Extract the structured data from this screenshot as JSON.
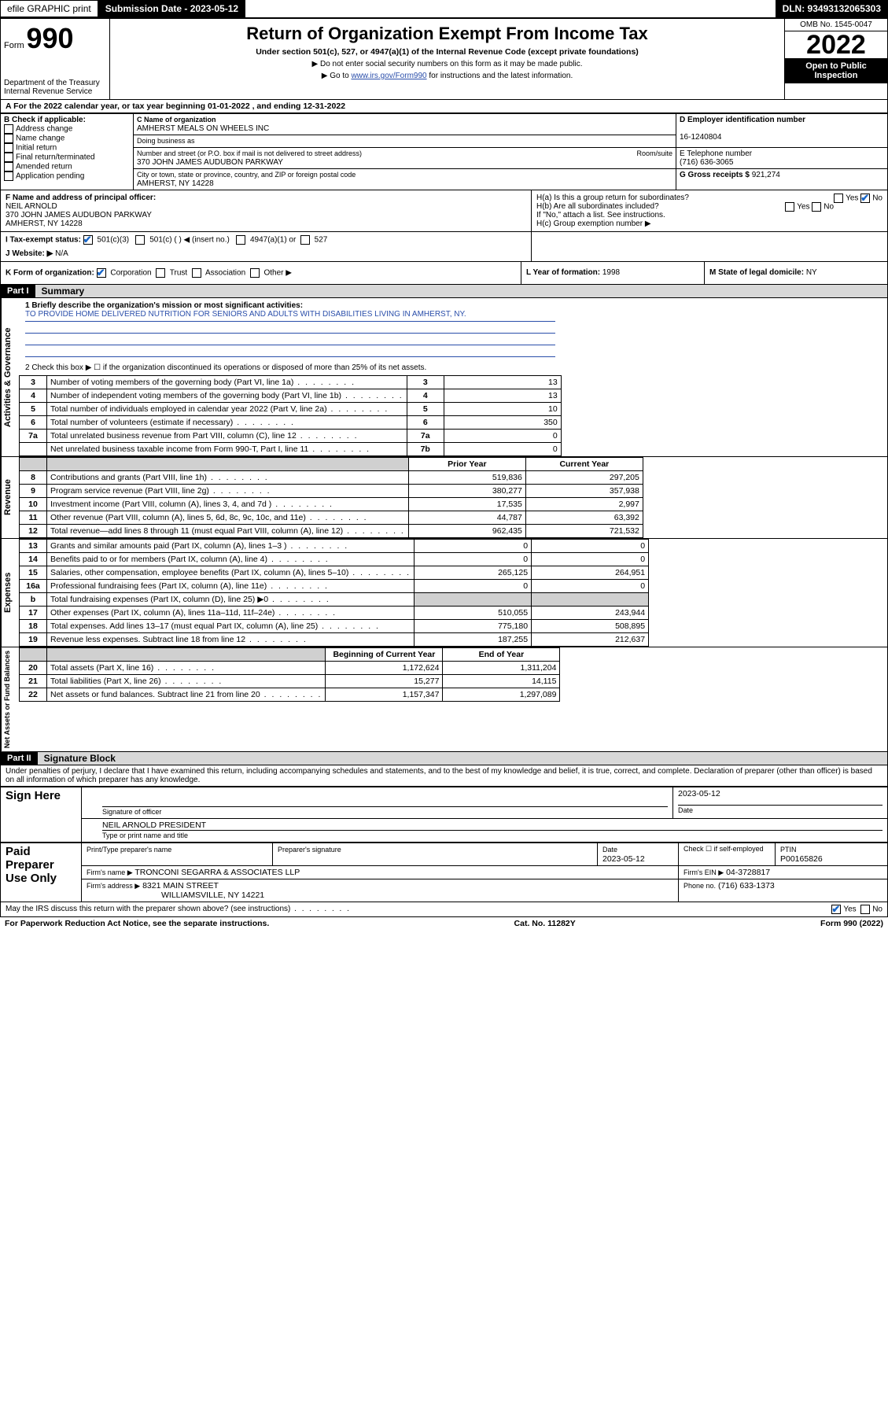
{
  "topbar": {
    "efile": "efile GRAPHIC print",
    "submission_label": "Submission Date - 2023-05-12",
    "dln_label": "DLN: 93493132065303"
  },
  "header": {
    "form_prefix": "Form",
    "form_number": "990",
    "dept": "Department of the Treasury",
    "irs": "Internal Revenue Service",
    "title": "Return of Organization Exempt From Income Tax",
    "sub1": "Under section 501(c), 527, or 4947(a)(1) of the Internal Revenue Code (except private foundations)",
    "sub2": "▶ Do not enter social security numbers on this form as it may be made public.",
    "sub3_prefix": "▶ Go to ",
    "sub3_link": "www.irs.gov/Form990",
    "sub3_suffix": " for instructions and the latest information.",
    "omb": "OMB No. 1545-0047",
    "year": "2022",
    "open": "Open to Public Inspection"
  },
  "rowA": "A For the 2022 calendar year, or tax year beginning 01-01-2022   , and ending 12-31-2022",
  "blockB": {
    "label": "B Check if applicable:",
    "opts": [
      "Address change",
      "Name change",
      "Initial return",
      "Final return/terminated",
      "Amended return",
      "Application pending"
    ]
  },
  "blockC": {
    "name_label": "C Name of organization",
    "name": "AMHERST MEALS ON WHEELS INC",
    "dba_label": "Doing business as",
    "addr_label": "Number and street (or P.O. box if mail is not delivered to street address)",
    "room_label": "Room/suite",
    "addr": "370 JOHN JAMES AUDUBON PARKWAY",
    "city_label": "City or town, state or province, country, and ZIP or foreign postal code",
    "city": "AMHERST, NY  14228"
  },
  "blockD": {
    "label": "D Employer identification number",
    "value": "16-1240804"
  },
  "blockE": {
    "label": "E Telephone number",
    "value": "(716) 636-3065"
  },
  "blockG": {
    "label": "G Gross receipts $",
    "value": "921,274"
  },
  "blockF": {
    "label": "F  Name and address of principal officer:",
    "name": "NEIL ARNOLD",
    "addr1": "370 JOHN JAMES AUDUBON PARKWAY",
    "addr2": "AMHERST, NY  14228"
  },
  "blockH": {
    "a": "H(a)  Is this a group return for subordinates?",
    "b": "H(b)  Are all subordinates included?",
    "note": "If \"No,\" attach a list. See instructions.",
    "c": "H(c)  Group exemption number ▶",
    "yes": "Yes",
    "no": "No"
  },
  "rowI": {
    "label": "I   Tax-exempt status:",
    "opt1": "501(c)(3)",
    "opt2": "501(c) (   ) ◀ (insert no.)",
    "opt3": "4947(a)(1) or",
    "opt4": "527"
  },
  "rowJ": {
    "label": "J   Website: ▶",
    "value": "N/A"
  },
  "rowK": {
    "label": "K Form of organization:",
    "opts": [
      "Corporation",
      "Trust",
      "Association",
      "Other ▶"
    ]
  },
  "rowL": {
    "label": "L Year of formation:",
    "value": "1998"
  },
  "rowM": {
    "label": "M State of legal domicile:",
    "value": "NY"
  },
  "part1": {
    "header": "Part I",
    "title": "Summary",
    "line1_label": "1  Briefly describe the organization's mission or most significant activities:",
    "mission": "TO PROVIDE HOME DELIVERED NUTRITION FOR SENIORS AND ADULTS WITH DISABILITIES LIVING IN AMHERST, NY.",
    "line2": "2   Check this box ▶ ☐  if the organization discontinued its operations or disposed of more than 25% of its net assets."
  },
  "governance": {
    "vert": "Activities & Governance",
    "rows": [
      {
        "n": "3",
        "label": "Number of voting members of the governing body (Part VI, line 1a)",
        "box": "3",
        "val": "13"
      },
      {
        "n": "4",
        "label": "Number of independent voting members of the governing body (Part VI, line 1b)",
        "box": "4",
        "val": "13"
      },
      {
        "n": "5",
        "label": "Total number of individuals employed in calendar year 2022 (Part V, line 2a)",
        "box": "5",
        "val": "10"
      },
      {
        "n": "6",
        "label": "Total number of volunteers (estimate if necessary)",
        "box": "6",
        "val": "350"
      },
      {
        "n": "7a",
        "label": "Total unrelated business revenue from Part VIII, column (C), line 12",
        "box": "7a",
        "val": "0"
      },
      {
        "n": "",
        "label": "Net unrelated business taxable income from Form 990-T, Part I, line 11",
        "box": "7b",
        "val": "0"
      }
    ]
  },
  "revenue": {
    "vert": "Revenue",
    "header_prior": "Prior Year",
    "header_current": "Current Year",
    "rows": [
      {
        "n": "8",
        "label": "Contributions and grants (Part VIII, line 1h)",
        "prior": "519,836",
        "cur": "297,205"
      },
      {
        "n": "9",
        "label": "Program service revenue (Part VIII, line 2g)",
        "prior": "380,277",
        "cur": "357,938"
      },
      {
        "n": "10",
        "label": "Investment income (Part VIII, column (A), lines 3, 4, and 7d )",
        "prior": "17,535",
        "cur": "2,997"
      },
      {
        "n": "11",
        "label": "Other revenue (Part VIII, column (A), lines 5, 6d, 8c, 9c, 10c, and 11e)",
        "prior": "44,787",
        "cur": "63,392"
      },
      {
        "n": "12",
        "label": "Total revenue—add lines 8 through 11 (must equal Part VIII, column (A), line 12)",
        "prior": "962,435",
        "cur": "721,532"
      }
    ]
  },
  "expenses": {
    "vert": "Expenses",
    "rows": [
      {
        "n": "13",
        "label": "Grants and similar amounts paid (Part IX, column (A), lines 1–3 )",
        "prior": "0",
        "cur": "0"
      },
      {
        "n": "14",
        "label": "Benefits paid to or for members (Part IX, column (A), line 4)",
        "prior": "0",
        "cur": "0"
      },
      {
        "n": "15",
        "label": "Salaries, other compensation, employee benefits (Part IX, column (A), lines 5–10)",
        "prior": "265,125",
        "cur": "264,951"
      },
      {
        "n": "16a",
        "label": "Professional fundraising fees (Part IX, column (A), line 11e)",
        "prior": "0",
        "cur": "0"
      },
      {
        "n": "b",
        "label": "Total fundraising expenses (Part IX, column (D), line 25) ▶0",
        "prior": "",
        "cur": "",
        "shaded": true
      },
      {
        "n": "17",
        "label": "Other expenses (Part IX, column (A), lines 11a–11d, 11f–24e)",
        "prior": "510,055",
        "cur": "243,944"
      },
      {
        "n": "18",
        "label": "Total expenses. Add lines 13–17 (must equal Part IX, column (A), line 25)",
        "prior": "775,180",
        "cur": "508,895"
      },
      {
        "n": "19",
        "label": "Revenue less expenses. Subtract line 18 from line 12",
        "prior": "187,255",
        "cur": "212,637"
      }
    ]
  },
  "netassets": {
    "vert": "Net Assets or Fund Balances",
    "header_begin": "Beginning of Current Year",
    "header_end": "End of Year",
    "rows": [
      {
        "n": "20",
        "label": "Total assets (Part X, line 16)",
        "prior": "1,172,624",
        "cur": "1,311,204"
      },
      {
        "n": "21",
        "label": "Total liabilities (Part X, line 26)",
        "prior": "15,277",
        "cur": "14,115"
      },
      {
        "n": "22",
        "label": "Net assets or fund balances. Subtract line 21 from line 20",
        "prior": "1,157,347",
        "cur": "1,297,089"
      }
    ]
  },
  "part2": {
    "header": "Part II",
    "title": "Signature Block",
    "declaration": "Under penalties of perjury, I declare that I have examined this return, including accompanying schedules and statements, and to the best of my knowledge and belief, it is true, correct, and complete. Declaration of preparer (other than officer) is based on all information of which preparer has any knowledge."
  },
  "sign": {
    "left": "Sign Here",
    "sig_label": "Signature of officer",
    "date_label": "Date",
    "date": "2023-05-12",
    "name": "NEIL ARNOLD  PRESIDENT",
    "name_label": "Type or print name and title"
  },
  "preparer": {
    "left": "Paid Preparer Use Only",
    "h_name": "Print/Type preparer's name",
    "h_sig": "Preparer's signature",
    "h_date": "Date",
    "date": "2023-05-12",
    "h_self": "Check ☐ if self-employed",
    "h_ptin": "PTIN",
    "ptin": "P00165826",
    "firm_name_label": "Firm's name    ▶",
    "firm_name": "TRONCONI SEGARRA & ASSOCIATES LLP",
    "firm_ein_label": "Firm's EIN ▶",
    "firm_ein": "04-3728817",
    "firm_addr_label": "Firm's address ▶",
    "firm_addr1": "8321 MAIN STREET",
    "firm_addr2": "WILLIAMSVILLE, NY  14221",
    "phone_label": "Phone no.",
    "phone": "(716) 633-1373"
  },
  "discuss": {
    "label": "May the IRS discuss this return with the preparer shown above? (see instructions)",
    "yes": "Yes",
    "no": "No"
  },
  "footer": {
    "left": "For Paperwork Reduction Act Notice, see the separate instructions.",
    "mid": "Cat. No. 11282Y",
    "right": "Form 990 (2022)"
  }
}
